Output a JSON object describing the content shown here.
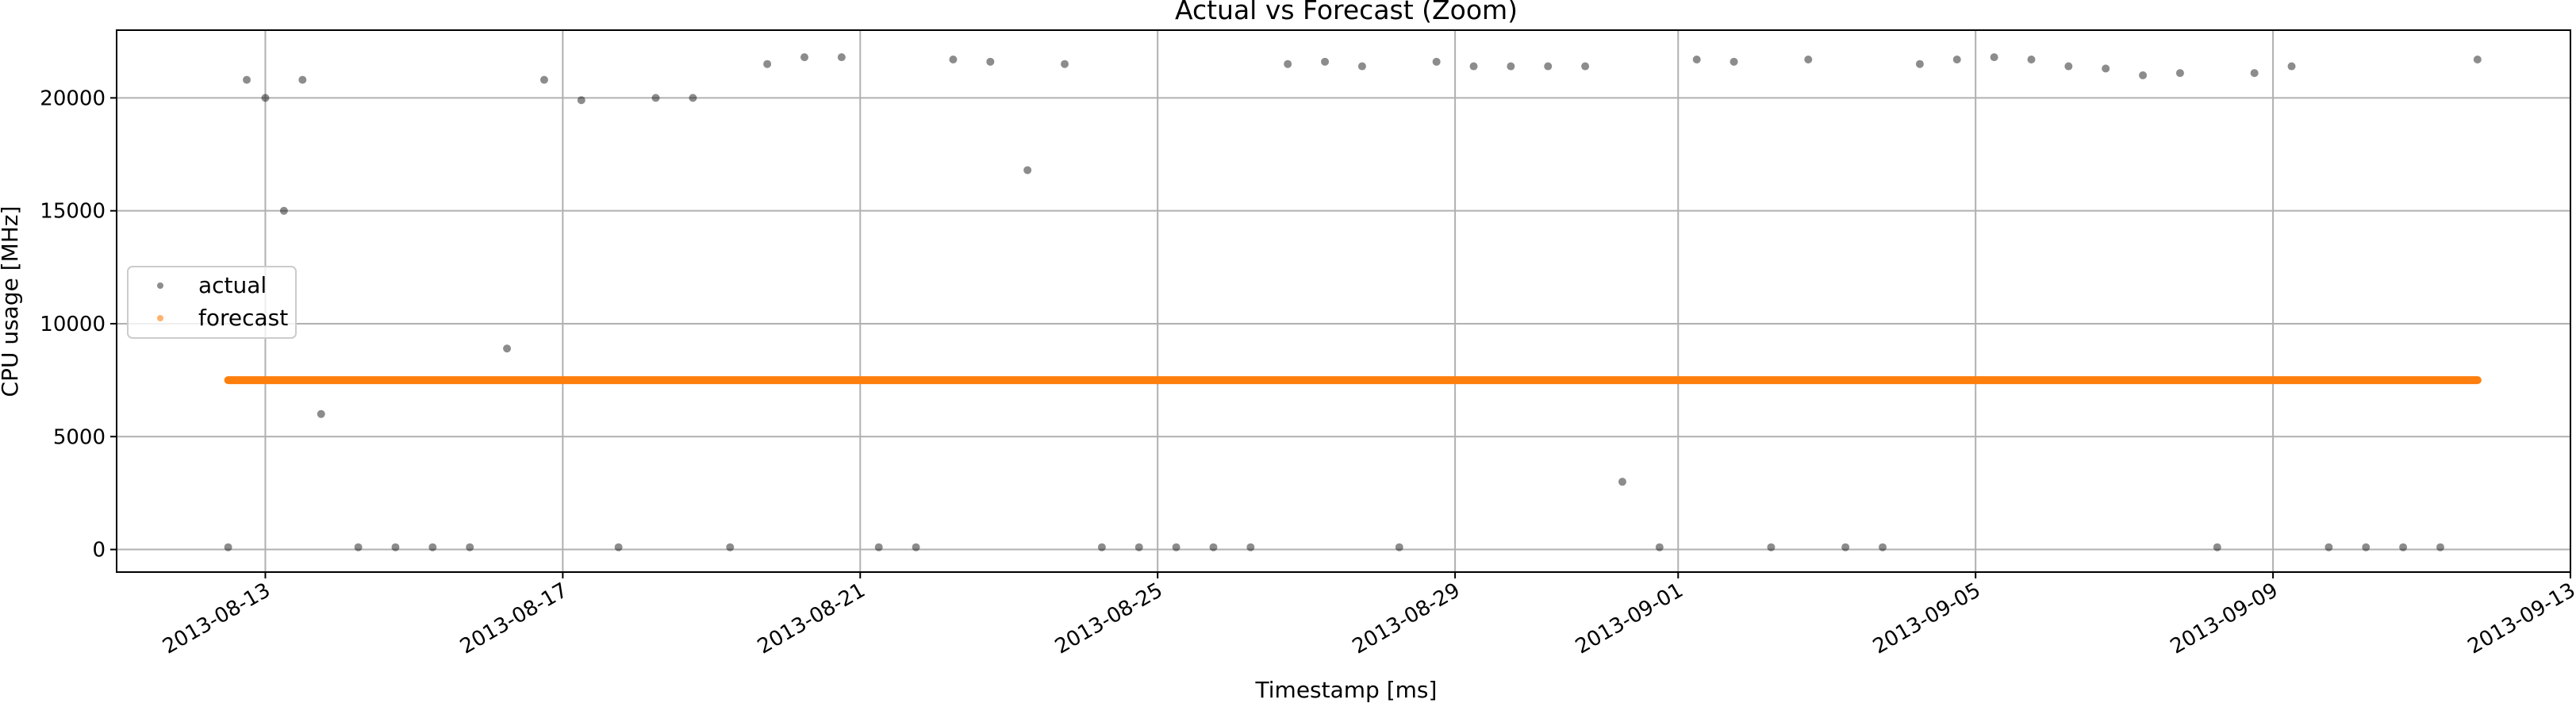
{
  "chart_data": {
    "type": "scatter",
    "title": "Actual vs Forecast (Zoom)",
    "xlabel": "Timestamp [ms]",
    "ylabel": "CPU usage [MHz]",
    "xlim": [
      "2013-08-11",
      "2013-09-13"
    ],
    "ylim": [
      -1000,
      23000
    ],
    "grid": true,
    "legend_position": "center-left",
    "x_ticks": [
      "2013-08-13",
      "2013-08-17",
      "2013-08-21",
      "2013-08-25",
      "2013-08-29",
      "2013-09-01",
      "2013-09-05",
      "2013-09-09",
      "2013-09-13"
    ],
    "y_ticks": [
      0,
      5000,
      10000,
      15000,
      20000
    ],
    "series": [
      {
        "name": "actual",
        "color": "#000000",
        "opacity": 0.45,
        "x": [
          "2013-08-12T12:00",
          "2013-08-12T18:00",
          "2013-08-13T00:00",
          "2013-08-13T06:00",
          "2013-08-13T12:00",
          "2013-08-13T18:00",
          "2013-08-14T06:00",
          "2013-08-14T18:00",
          "2013-08-15T06:00",
          "2013-08-15T18:00",
          "2013-08-16T06:00",
          "2013-08-16T18:00",
          "2013-08-17T06:00",
          "2013-08-17T18:00",
          "2013-08-18T06:00",
          "2013-08-18T18:00",
          "2013-08-19T06:00",
          "2013-08-19T18:00",
          "2013-08-20T06:00",
          "2013-08-20T18:00",
          "2013-08-21T06:00",
          "2013-08-21T18:00",
          "2013-08-22T06:00",
          "2013-08-22T18:00",
          "2013-08-23T06:00",
          "2013-08-23T18:00",
          "2013-08-24T06:00",
          "2013-08-24T18:00",
          "2013-08-25T06:00",
          "2013-08-25T18:00",
          "2013-08-26T06:00",
          "2013-08-26T18:00",
          "2013-08-27T06:00",
          "2013-08-27T18:00",
          "2013-08-28T06:00",
          "2013-08-28T18:00",
          "2013-08-29T06:00",
          "2013-08-29T18:00",
          "2013-08-30T06:00",
          "2013-08-30T18:00",
          "2013-08-31T06:00",
          "2013-08-31T18:00",
          "2013-09-01T06:00",
          "2013-09-01T18:00",
          "2013-09-02T06:00",
          "2013-09-02T18:00",
          "2013-09-03T06:00",
          "2013-09-03T18:00",
          "2013-09-04T06:00",
          "2013-09-04T18:00",
          "2013-09-05T06:00",
          "2013-09-05T18:00",
          "2013-09-06T06:00",
          "2013-09-06T18:00",
          "2013-09-07T06:00",
          "2013-09-07T18:00",
          "2013-09-08T06:00",
          "2013-09-08T18:00",
          "2013-09-09T06:00",
          "2013-09-09T18:00",
          "2013-09-10T06:00",
          "2013-09-10T18:00",
          "2013-09-11T06:00",
          "2013-09-11T18:00"
        ],
        "y": [
          100,
          20800,
          20000,
          15000,
          20800,
          6000,
          100,
          100,
          100,
          100,
          8900,
          20800,
          19900,
          100,
          20000,
          20000,
          100,
          21500,
          21800,
          21800,
          100,
          100,
          21700,
          21600,
          16800,
          21500,
          100,
          100,
          100,
          100,
          100,
          21500,
          21600,
          21400,
          100,
          21600,
          21400,
          21400,
          21400,
          21400,
          3000,
          100,
          21700,
          21600,
          100,
          21700,
          100,
          100,
          21500,
          21700,
          21800,
          21700,
          21400,
          21300,
          21000,
          21100,
          100,
          21100,
          21400,
          100,
          100,
          100,
          100,
          21700
        ]
      },
      {
        "name": "forecast",
        "color": "#ff7f0e",
        "x": [
          "2013-08-12T12:00",
          "2013-09-11T18:00"
        ],
        "y": [
          7500,
          7500
        ]
      }
    ]
  }
}
